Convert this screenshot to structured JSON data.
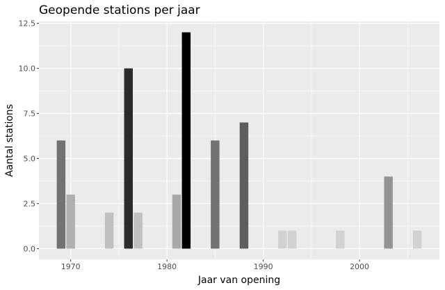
{
  "chart_data": {
    "type": "bar",
    "title": "Geopende stations per jaar",
    "xlabel": "Jaar van opening",
    "ylabel": "Aantal stations",
    "xlim": [
      1966.7,
      2008.3
    ],
    "ylim": [
      -0.6,
      12.6
    ],
    "x_ticks": [
      1970,
      1980,
      1990,
      2000
    ],
    "x_tick_labels": [
      "1970",
      "1980",
      "1990",
      "2000"
    ],
    "y_ticks": [
      0,
      2.5,
      5,
      7.5,
      10,
      12.5
    ],
    "y_tick_labels": [
      "0.0",
      "2.5",
      "5.0",
      "7.5",
      "10.0",
      "12.5"
    ],
    "grid": true,
    "legend": "none",
    "x": [
      1969,
      1970,
      1974,
      1976,
      1977,
      1981,
      1982,
      1985,
      1988,
      1992,
      1993,
      1998,
      2003,
      2006
    ],
    "values": [
      6,
      3,
      2,
      10,
      2,
      3,
      12,
      6,
      7,
      1,
      1,
      1,
      4,
      1
    ],
    "colors": [
      "#727272",
      "#b0b0b0",
      "#c0c0c0",
      "#2b2b2b",
      "#c0c0c0",
      "#a8a8a8",
      "#000000",
      "#727272",
      "#5e5e5e",
      "#d2d2d2",
      "#d2d2d2",
      "#d2d2d2",
      "#949494",
      "#d2d2d2"
    ],
    "panel_background": "#ebebeb",
    "grid_color": "#ffffff"
  }
}
